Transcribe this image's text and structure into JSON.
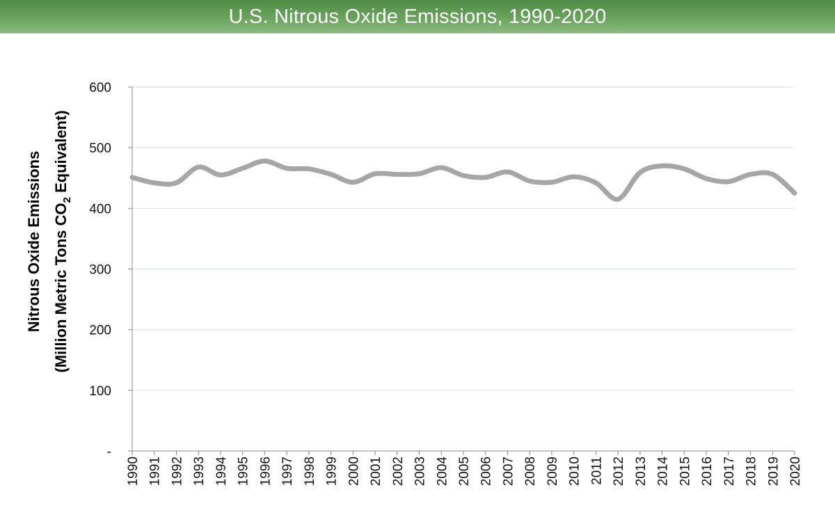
{
  "title": "U.S. Nitrous Oxide Emissions, 1990-2020",
  "colors": {
    "title_bar": "#5b9a50",
    "line": "#a6a6a6",
    "grid": "#cfe3ea",
    "axis": "#888888"
  },
  "chart_data": {
    "type": "line",
    "title": "U.S. Nitrous Oxide Emissions, 1990-2020",
    "ylabel_line1": "Nitrous Oxide Emissions",
    "ylabel_line2_prefix": "(Million Metric Tons CO",
    "ylabel_line2_sub": "2",
    "ylabel_line2_suffix": " Equivalent)",
    "ylim": [
      0,
      600
    ],
    "y_ticks": [
      0,
      100,
      200,
      300,
      400,
      500,
      600
    ],
    "y_tick_labels": [
      "-",
      "100",
      "200",
      "300",
      "400",
      "500",
      "600"
    ],
    "grid": true,
    "x": [
      "1990",
      "1991",
      "1992",
      "1993",
      "1994",
      "1995",
      "1996",
      "1997",
      "1998",
      "1999",
      "2000",
      "2001",
      "2002",
      "2003",
      "2004",
      "2005",
      "2006",
      "2007",
      "2008",
      "2009",
      "2010",
      "2011",
      "2012",
      "2013",
      "2014",
      "2015",
      "2016",
      "2017",
      "2018",
      "2019",
      "2020"
    ],
    "series": [
      {
        "values": [
          451,
          442,
          442,
          468,
          455,
          466,
          478,
          466,
          465,
          456,
          443,
          457,
          456,
          457,
          467,
          454,
          451,
          460,
          445,
          443,
          452,
          442,
          415,
          459,
          470,
          465,
          449,
          444,
          456,
          456,
          425
        ]
      }
    ]
  }
}
